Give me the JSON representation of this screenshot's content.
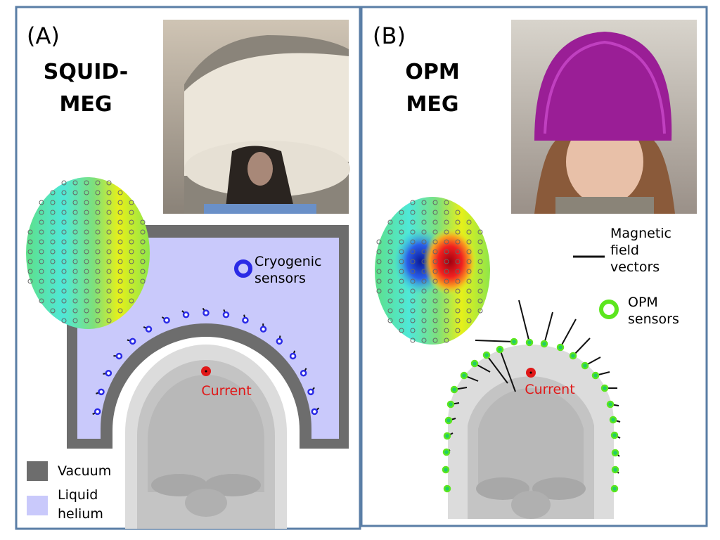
{
  "panel_a": {
    "label": "(A)",
    "title_line1": "SQUID-",
    "title_line2": "MEG",
    "sensor_legend_line1": "Cryogenic",
    "sensor_legend_line2": "sensors",
    "current_label": "Current",
    "legend": {
      "vacuum": "Vacuum",
      "helium_line1": "Liquid",
      "helium_line2": "helium"
    }
  },
  "panel_b": {
    "label": "(B)",
    "title_line1": "OPM",
    "title_line2": "MEG",
    "vector_legend_line1": "Magnetic",
    "vector_legend_line2": "field",
    "vector_legend_line3": "vectors",
    "sensor_legend_line1": "OPM",
    "sensor_legend_line2": "sensors",
    "current_label": "Current"
  },
  "colors": {
    "frame": "#5a7ea6",
    "vacuum": "#6d6d6d",
    "helium": "#c9c9fb",
    "cryogenic_sensor": "#2a2ae6",
    "opm_sensor": "#5ce61e",
    "current": "#e01818"
  }
}
